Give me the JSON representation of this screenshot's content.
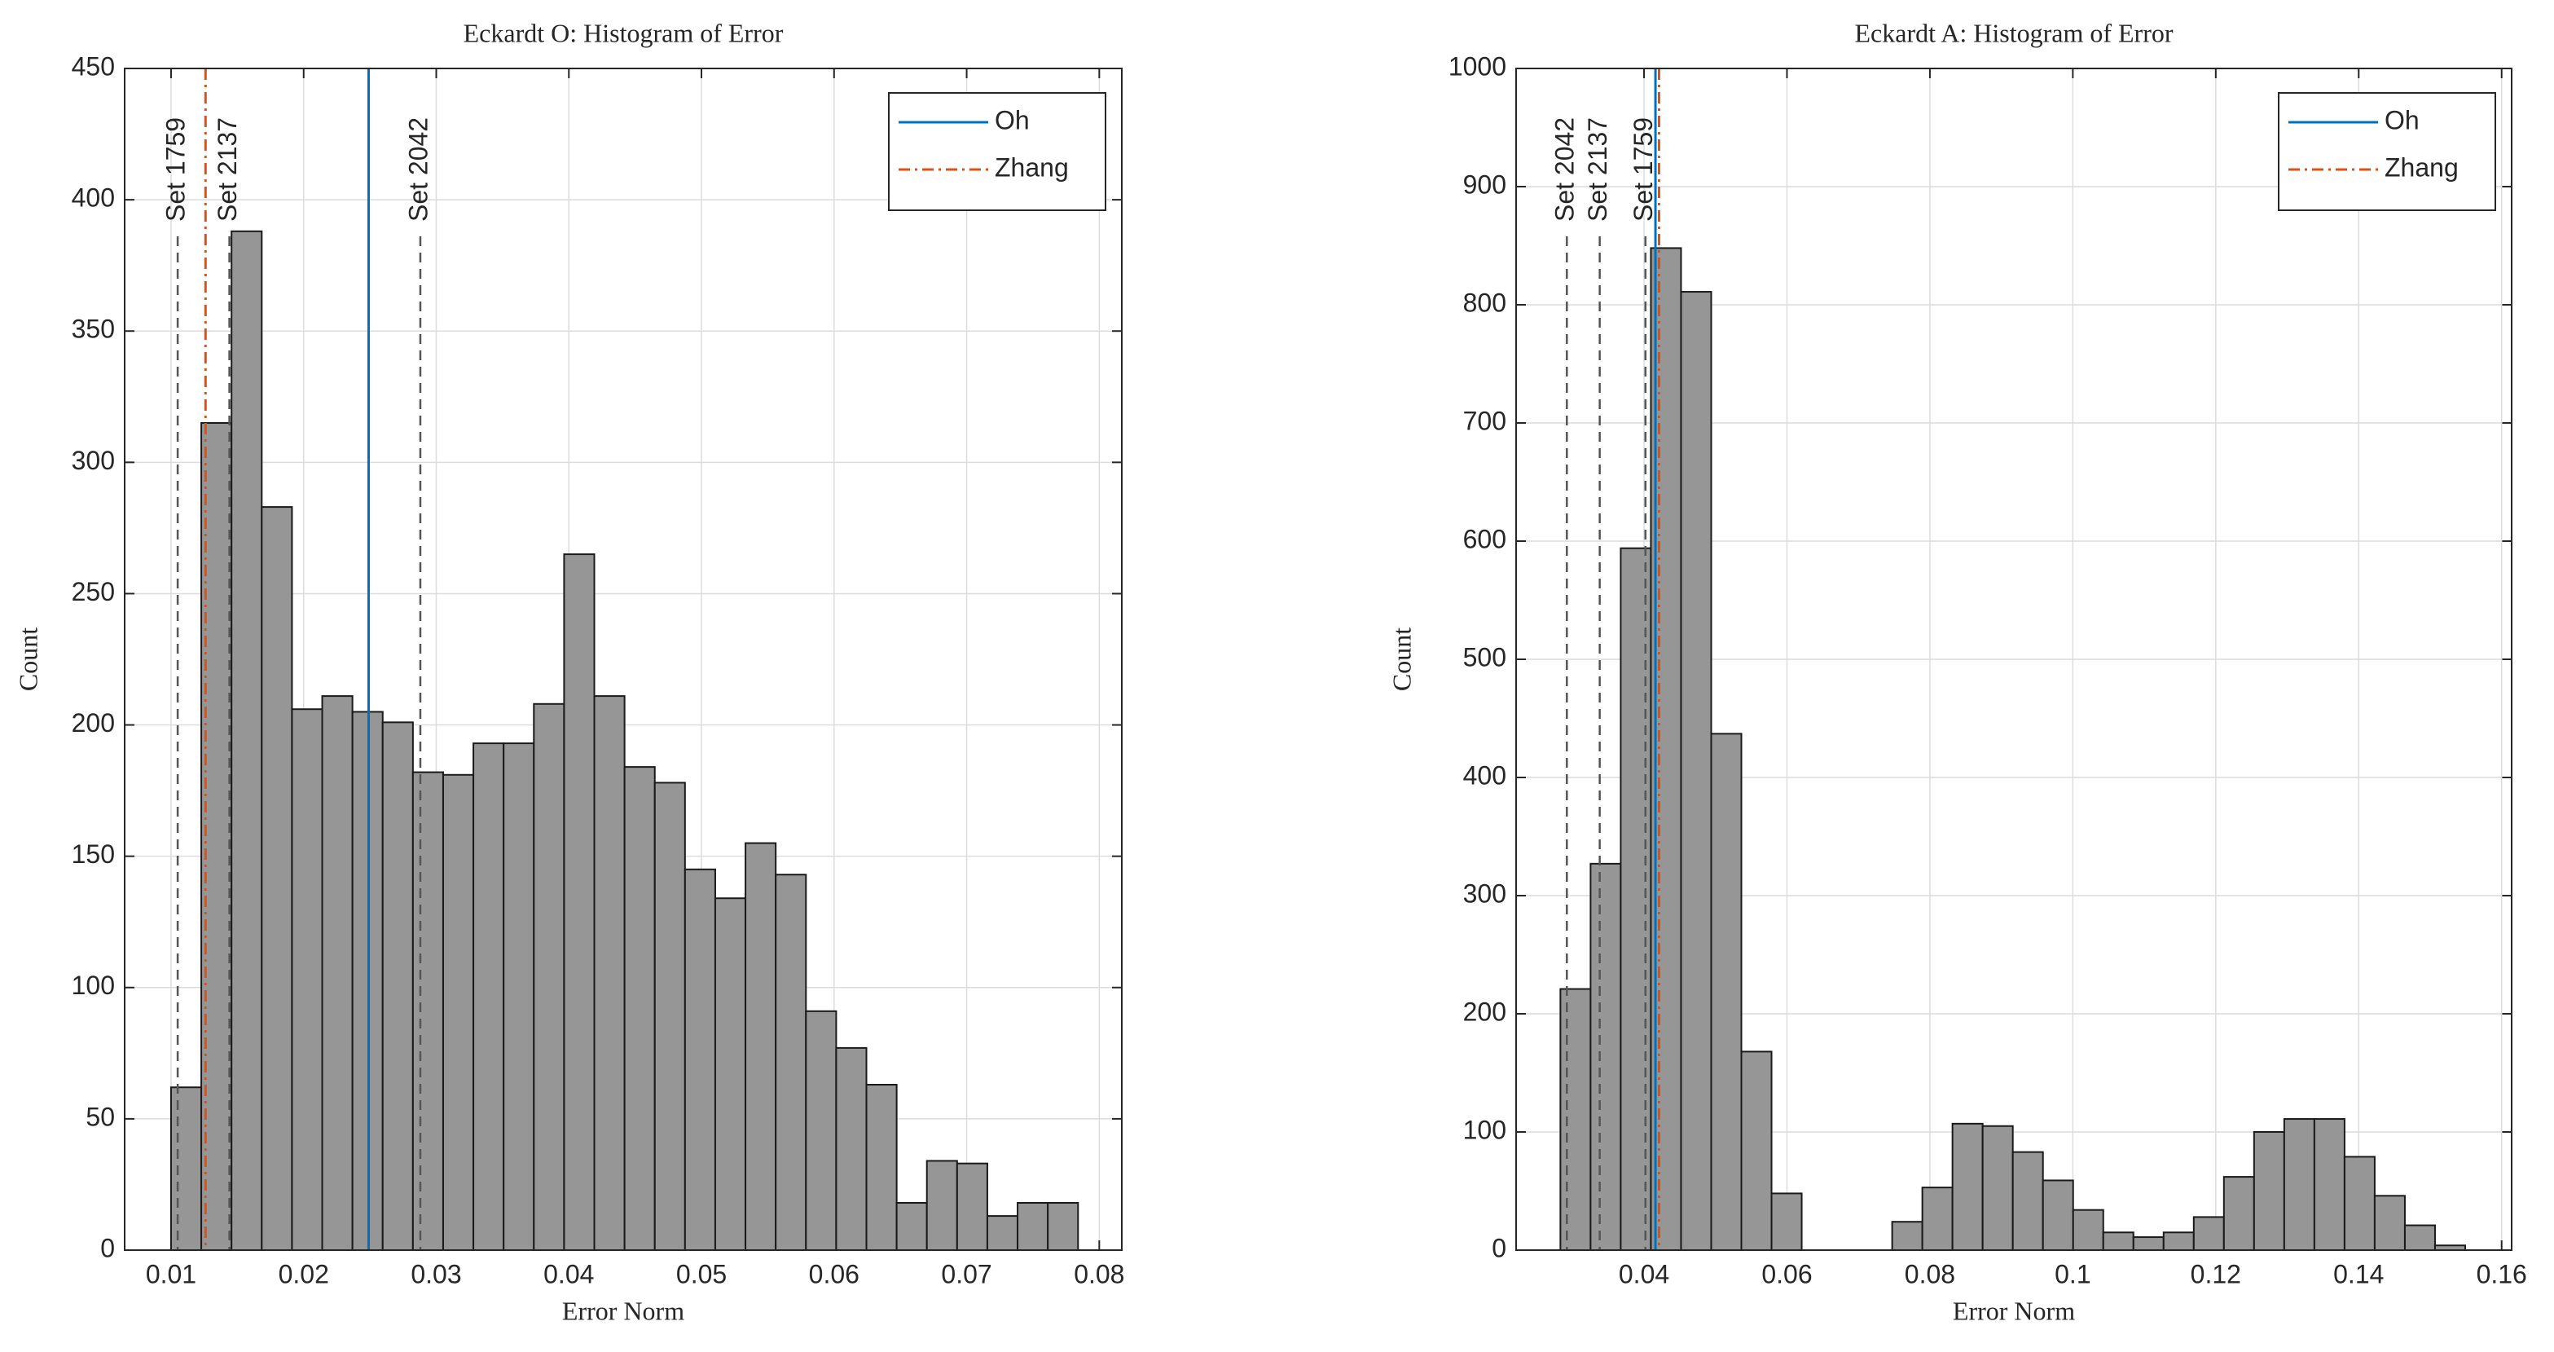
{
  "chart_data": [
    {
      "type": "histogram",
      "title": "Eckardt O: Histogram of Error",
      "xlabel": "Error Norm",
      "ylabel": "Count",
      "bins": [
        0.01,
        0.01228,
        0.01456,
        0.01684,
        0.01912,
        0.0214,
        0.02368,
        0.02596,
        0.02824,
        0.03052,
        0.0328,
        0.03508,
        0.03736,
        0.03964,
        0.04192,
        0.0442,
        0.04648,
        0.04876,
        0.05104,
        0.05332,
        0.0556,
        0.05788,
        0.06016,
        0.06244,
        0.06472,
        0.067,
        0.06928,
        0.07156,
        0.07384,
        0.07612,
        0.0784
      ],
      "counts": [
        62,
        315,
        388,
        283,
        206,
        211,
        205,
        201,
        182,
        181,
        193,
        193,
        208,
        265,
        211,
        184,
        178,
        145,
        134,
        155,
        143,
        91,
        77,
        63,
        18,
        34,
        33,
        13,
        18,
        18
      ],
      "color": "#969696",
      "xlim": [
        0.0065,
        0.0817
      ],
      "xticks": [
        0.01,
        0.02,
        0.03,
        0.04,
        0.05,
        0.06,
        0.07,
        0.08
      ],
      "ylim": [
        0,
        450
      ],
      "yticks": [
        0,
        50,
        100,
        150,
        200,
        250,
        300,
        350,
        400,
        450
      ],
      "grid": true,
      "legend": "upper right",
      "series": [
        {
          "name": "Oh",
          "color": "#0072bd",
          "x": 0.0249
        },
        {
          "name": "Zhang",
          "color": "#d95319",
          "x": 0.0126
        }
      ],
      "annotations": [
        {
          "text": "Set 1759",
          "x": 0.0105
        },
        {
          "text": "Set 2137",
          "x": 0.0144
        },
        {
          "text": "Set 2042",
          "x": 0.0288
        }
      ]
    },
    {
      "type": "histogram",
      "title": "Eckardt A: Histogram of Error",
      "xlabel": "Error Norm",
      "ylabel": "Count",
      "bins": [
        0.0283,
        0.03252,
        0.03674,
        0.04096,
        0.04518,
        0.0494,
        0.05362,
        0.05784,
        0.06206,
        0.06628,
        0.0705,
        0.07472,
        0.07894,
        0.08316,
        0.08738,
        0.0916,
        0.09582,
        0.10004,
        0.10426,
        0.10848,
        0.1127,
        0.11692,
        0.12114,
        0.12536,
        0.12958,
        0.1338,
        0.13802,
        0.14224,
        0.14646,
        0.15068,
        0.1549
      ],
      "counts": [
        221,
        327,
        594,
        848,
        811,
        437,
        168,
        48,
        0,
        0,
        0,
        24,
        53,
        107,
        105,
        83,
        59,
        34,
        15,
        11,
        15,
        28,
        62,
        100,
        111,
        111,
        79,
        46,
        21,
        4
      ],
      "color": "#969696",
      "xlim": [
        0.0221,
        0.1614
      ],
      "xticks": [
        0.04,
        0.06,
        0.08,
        0.1,
        0.12,
        0.14,
        0.16
      ],
      "ylim": [
        0,
        1000
      ],
      "yticks": [
        0,
        100,
        200,
        300,
        400,
        500,
        600,
        700,
        800,
        900,
        1000
      ],
      "grid": true,
      "legend": "upper right",
      "series": [
        {
          "name": "Oh",
          "color": "#0072bd",
          "x": 0.0416
        },
        {
          "name": "Zhang",
          "color": "#d95319",
          "x": 0.0421
        }
      ],
      "annotations": [
        {
          "text": "Set 2042",
          "x": 0.0292
        },
        {
          "text": "Set 2137",
          "x": 0.0338
        },
        {
          "text": "Set 1759",
          "x": 0.0402
        }
      ]
    }
  ]
}
